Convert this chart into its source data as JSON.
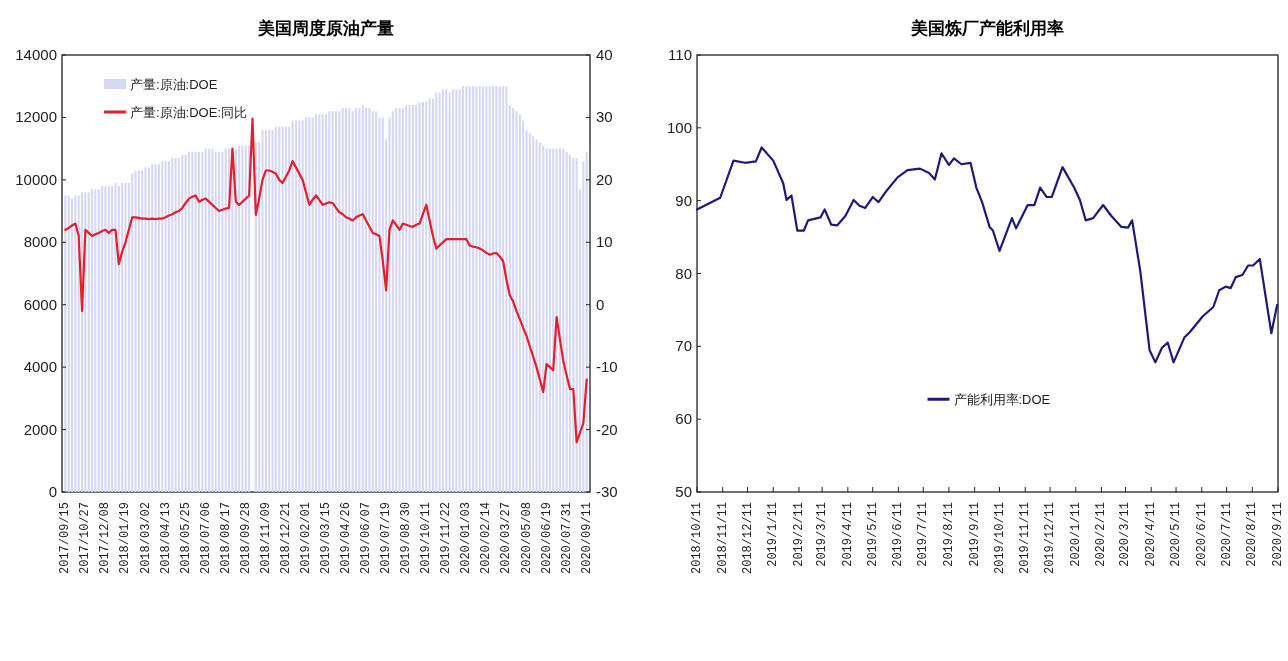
{
  "chart_data": [
    {
      "type": "bar",
      "title": "美国周度原油产量",
      "categories": [
        "2017/09/15",
        null,
        null,
        null,
        null,
        null,
        "2017/10/27",
        null,
        null,
        null,
        null,
        null,
        "2017/12/08",
        null,
        null,
        null,
        null,
        null,
        "2018/01/19",
        null,
        null,
        null,
        null,
        null,
        "2018/03/02",
        null,
        null,
        null,
        null,
        null,
        "2018/04/13",
        null,
        null,
        null,
        null,
        null,
        "2018/05/25",
        null,
        null,
        null,
        null,
        null,
        "2018/07/06",
        null,
        null,
        null,
        null,
        null,
        "2018/08/17",
        null,
        null,
        null,
        null,
        null,
        "2018/09/28",
        null,
        null,
        null,
        null,
        null,
        "2018/11/09",
        null,
        null,
        null,
        null,
        null,
        "2018/12/21",
        null,
        null,
        null,
        null,
        null,
        "2019/02/01",
        null,
        null,
        null,
        null,
        null,
        "2019/03/15",
        null,
        null,
        null,
        null,
        null,
        "2019/04/26",
        null,
        null,
        null,
        null,
        null,
        "2019/06/07",
        null,
        null,
        null,
        null,
        null,
        "2019/07/19",
        null,
        null,
        null,
        null,
        null,
        "2019/08/30",
        null,
        null,
        null,
        null,
        null,
        "2019/10/11",
        null,
        null,
        null,
        null,
        null,
        "2019/11/22",
        null,
        null,
        null,
        null,
        null,
        "2020/01/03",
        null,
        null,
        null,
        null,
        null,
        "2020/02/14",
        null,
        null,
        null,
        null,
        null,
        "2020/03/27",
        null,
        null,
        null,
        null,
        null,
        "2020/05/08",
        null,
        null,
        null,
        null,
        null,
        "2020/06/19",
        null,
        null,
        null,
        null,
        null,
        "2020/07/31",
        null,
        null,
        null,
        null,
        null,
        "2020/09/11"
      ],
      "series": [
        {
          "name": "产量:原油:DOE",
          "type": "bar",
          "color": "#d6d6f5",
          "values": [
            9500,
            9500,
            9400,
            9500,
            9500,
            9600,
            9600,
            9600,
            9700,
            9700,
            9700,
            9800,
            9800,
            9800,
            9800,
            9900,
            9800,
            9900,
            9900,
            9900,
            10200,
            10300,
            10300,
            10300,
            10400,
            10400,
            10500,
            10500,
            10500,
            10600,
            10600,
            10600,
            10700,
            10700,
            10700,
            10800,
            10800,
            10900,
            10900,
            10900,
            10900,
            10900,
            11000,
            11000,
            11000,
            10900,
            10900,
            10900,
            11000,
            11000,
            11000,
            11000,
            11100,
            11100,
            11100,
            11100,
            null,
            11200,
            11200,
            11600,
            11600,
            11600,
            11600,
            11700,
            11700,
            11700,
            11700,
            11700,
            11900,
            11900,
            11900,
            11900,
            12000,
            12000,
            12000,
            12100,
            12100,
            12100,
            12100,
            12200,
            12200,
            12200,
            12200,
            12300,
            12300,
            12300,
            12200,
            12300,
            12300,
            12400,
            12300,
            12300,
            12200,
            12200,
            12000,
            12000,
            11300,
            12000,
            12200,
            12300,
            12300,
            12300,
            12400,
            12400,
            12400,
            12400,
            12500,
            12500,
            12500,
            12600,
            12600,
            12800,
            12800,
            12900,
            12900,
            12800,
            12900,
            12900,
            12900,
            13000,
            13000,
            13000,
            13000,
            13000,
            13000,
            13000,
            13000,
            13000,
            13000,
            13000,
            13000,
            13000,
            13000,
            12400,
            12300,
            12200,
            12100,
            11900,
            11600,
            11500,
            11400,
            11300,
            11200,
            11100,
            11000,
            11000,
            11000,
            11000,
            11000,
            11000,
            10900,
            10800,
            10700,
            10700,
            9700,
            10600,
            10900
          ]
        },
        {
          "name": "产量:原油:DOE:同比",
          "type": "line",
          "axis": "y2",
          "color": "#e3202a",
          "values": [
            12,
            12.3,
            12.7,
            13,
            11,
            -1,
            12,
            11.5,
            11,
            11.3,
            11.5,
            11.8,
            12,
            11.5,
            12,
            12,
            6.5,
            8.5,
            10,
            12,
            14,
            14,
            13.9,
            13.8,
            13.8,
            13.7,
            13.8,
            13.7,
            13.8,
            13.8,
            14,
            14.3,
            14.5,
            14.8,
            15,
            15.5,
            16.3,
            17,
            17.3,
            17.5,
            16.5,
            16.8,
            17,
            16.5,
            16,
            15.5,
            15,
            15.2,
            15.4,
            15.5,
            25,
            16.5,
            16,
            16.5,
            17,
            17.5,
            29.8,
            14.4,
            17,
            20,
            21.5,
            21.5,
            21.3,
            21,
            20,
            19.5,
            20.5,
            21.5,
            23,
            22,
            21,
            20,
            18,
            16,
            16.8,
            17.5,
            16.8,
            16,
            16.2,
            16.4,
            16.3,
            15.5,
            14.8,
            14.5,
            14,
            13.8,
            13.5,
            14,
            14.3,
            14.5,
            13.5,
            12.5,
            11.5,
            11.3,
            11,
            7,
            2.3,
            12,
            13.5,
            12.8,
            12,
            13,
            12.8,
            12.6,
            12.5,
            12.8,
            13,
            14.5,
            16,
            13.5,
            11,
            9,
            9.5,
            10,
            10.5,
            10.5,
            10.5,
            10.5,
            10.5,
            10.5,
            10.5,
            9.5,
            9.3,
            9.2,
            9,
            8.7,
            8.3,
            8,
            8.2,
            8.3,
            7.7,
            7,
            4,
            1.5,
            0.5,
            -1,
            -2.3,
            -3.7,
            -5,
            -6.7,
            -8.3,
            -10,
            -12,
            -14,
            -9.5,
            -10,
            -10.5,
            -2,
            -5.5,
            -9,
            -11.3,
            -13.5,
            -13.5,
            -22,
            -20.5,
            -19,
            -12
          ]
        }
      ],
      "ylim": [
        0,
        14000
      ],
      "yticks": [
        0,
        2000,
        4000,
        6000,
        8000,
        10000,
        12000,
        14000
      ],
      "y2lim": [
        -30,
        40
      ],
      "y2ticks": [
        -30,
        -20,
        -10,
        0,
        10,
        20,
        30,
        40
      ],
      "legend": "top left"
    },
    {
      "type": "line",
      "title": "美国炼厂产能利用率",
      "x": [
        "2018-10-11",
        "2018-11-08",
        "2018-11-24",
        "2018-12-08",
        "2018-12-21",
        "2018-12-28",
        "2019-01-11",
        "2019-01-23",
        "2019-01-27",
        "2019-02-02",
        "2019-02-09",
        "2019-02-17",
        "2019-02-22",
        "2019-03-09",
        "2019-03-14",
        "2019-03-22",
        "2019-03-29",
        "2019-04-08",
        "2019-04-18",
        "2019-04-25",
        "2019-05-02",
        "2019-05-11",
        "2019-05-18",
        "2019-05-28",
        "2019-06-10",
        "2019-06-22",
        "2019-07-07",
        "2019-07-18",
        "2019-07-25",
        "2019-08-02",
        "2019-08-11",
        "2019-08-17",
        "2019-08-26",
        "2019-09-06",
        "2019-09-13",
        "2019-09-20",
        "2019-09-29",
        "2019-10-03",
        "2019-10-11",
        "2019-10-26",
        "2019-10-31",
        "2019-11-14",
        "2019-11-22",
        "2019-11-29",
        "2019-12-07",
        "2019-12-13",
        "2019-12-26",
        "2020-01-09",
        "2020-01-16",
        "2020-01-23",
        "2020-02-01",
        "2020-02-13",
        "2020-02-23",
        "2020-03-06",
        "2020-03-14",
        "2020-03-19",
        "2020-03-29",
        "2020-04-09",
        "2020-04-16",
        "2020-04-24",
        "2020-05-01",
        "2020-05-08",
        "2020-05-21",
        "2020-05-28",
        "2020-06-12",
        "2020-06-25",
        "2020-07-02",
        "2020-07-10",
        "2020-07-16",
        "2020-07-22",
        "2020-07-30",
        "2020-08-06",
        "2020-08-12",
        "2020-08-20",
        "2020-09-03",
        "2020-09-10"
      ],
      "series": [
        {
          "name": "产能利用率:DOE",
          "color": "#1f1a78",
          "values": [
            88.8,
            90.4,
            95.5,
            95.2,
            95.4,
            97.3,
            95.5,
            92.4,
            90.1,
            90.7,
            85.9,
            85.9,
            87.3,
            87.7,
            88.8,
            86.7,
            86.6,
            87.9,
            90.1,
            89.3,
            89.0,
            90.5,
            89.8,
            91.4,
            93.2,
            94.2,
            94.4,
            93.8,
            92.9,
            96.5,
            94.9,
            95.8,
            95.0,
            95.2,
            91.8,
            89.8,
            86.4,
            85.9,
            83.1,
            87.6,
            86.2,
            89.4,
            89.4,
            91.8,
            90.5,
            90.5,
            94.6,
            91.8,
            90.1,
            87.3,
            87.6,
            89.4,
            87.9,
            86.4,
            86.3,
            87.3,
            80.2,
            69.5,
            67.8,
            69.8,
            70.5,
            67.8,
            71.2,
            72.0,
            74.1,
            75.4,
            77.7,
            78.2,
            78.0,
            79.5,
            79.8,
            81.1,
            81.1,
            82.0,
            71.8,
            75.7
          ]
        }
      ],
      "xlim": [
        "2018-10-11",
        "2020-09-11"
      ],
      "xticks": [
        {
          "value": "2018-10-11",
          "label": "2018/10/11"
        },
        {
          "value": "2018-11-11",
          "label": "2018/11/11"
        },
        {
          "value": "2018-12-11",
          "label": "2018/12/11"
        },
        {
          "value": "2019-01-11",
          "label": "2019/1/11"
        },
        {
          "value": "2019-02-11",
          "label": "2019/2/11"
        },
        {
          "value": "2019-03-11",
          "label": "2019/3/11"
        },
        {
          "value": "2019-04-11",
          "label": "2019/4/11"
        },
        {
          "value": "2019-05-11",
          "label": "2019/5/11"
        },
        {
          "value": "2019-06-11",
          "label": "2019/6/11"
        },
        {
          "value": "2019-07-11",
          "label": "2019/7/11"
        },
        {
          "value": "2019-08-11",
          "label": "2019/8/11"
        },
        {
          "value": "2019-09-11",
          "label": "2019/9/11"
        },
        {
          "value": "2019-10-11",
          "label": "2019/10/11"
        },
        {
          "value": "2019-11-11",
          "label": "2019/11/11"
        },
        {
          "value": "2019-12-11",
          "label": "2019/12/11"
        },
        {
          "value": "2020-01-11",
          "label": "2020/1/11"
        },
        {
          "value": "2020-02-11",
          "label": "2020/2/11"
        },
        {
          "value": "2020-03-11",
          "label": "2020/3/11"
        },
        {
          "value": "2020-04-11",
          "label": "2020/4/11"
        },
        {
          "value": "2020-05-11",
          "label": "2020/5/11"
        },
        {
          "value": "2020-06-11",
          "label": "2020/6/11"
        },
        {
          "value": "2020-07-11",
          "label": "2020/7/11"
        },
        {
          "value": "2020-08-11",
          "label": "2020/8/11"
        },
        {
          "value": "2020-09-11",
          "label": "2020/9/11"
        }
      ],
      "ylim": [
        50,
        110
      ],
      "yticks": [
        50,
        60,
        70,
        80,
        90,
        100,
        110
      ],
      "legend": "bottom"
    }
  ]
}
